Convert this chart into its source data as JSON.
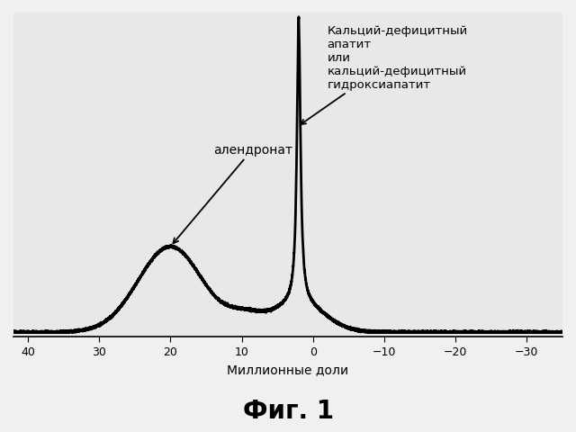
{
  "title": "Фиг. 1",
  "xlabel": "Миллионные доли",
  "xlim": [
    42,
    -35
  ],
  "xticks": [
    40,
    30,
    20,
    10,
    0,
    -10,
    -20,
    -30
  ],
  "background_color": "#f0f0f0",
  "plot_bg_color": "#e8e8e8",
  "line_color": "#000000",
  "annotation_alendronate": "алендронат",
  "annotation_apatite": "Кальций-дефицитный\nапатит\nили\nкальций-дефицитный\nгидроксиапатит",
  "fig_width": 6.4,
  "fig_height": 4.81,
  "dpi": 100
}
